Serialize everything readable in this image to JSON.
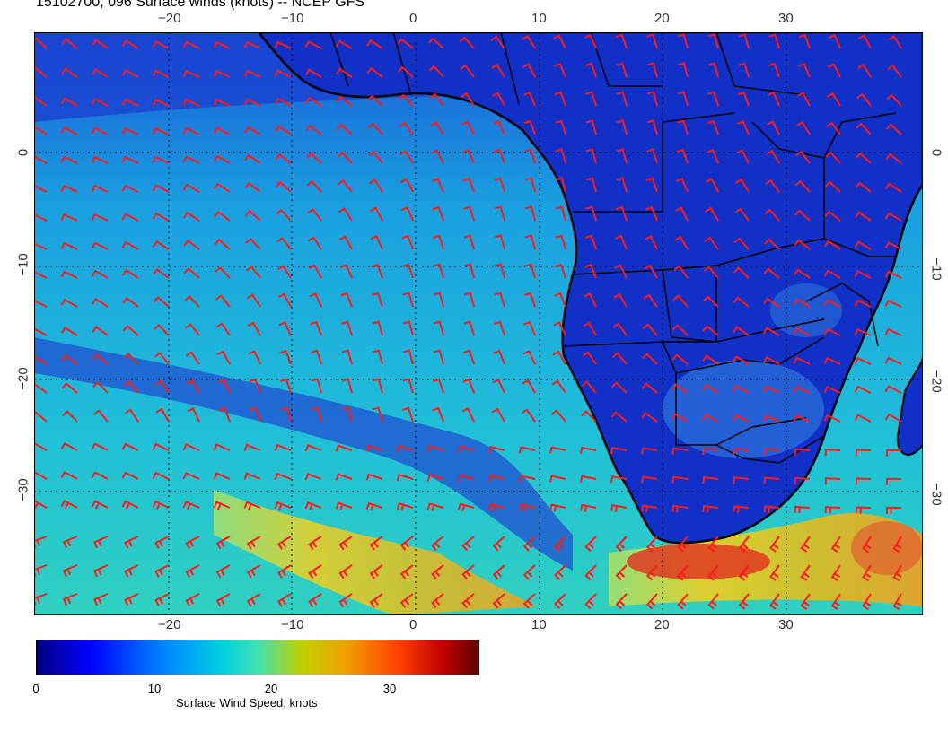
{
  "title": "15102700, 096 Surface winds (knots) -- NCEP GFS",
  "map": {
    "lon_labels": [
      "−20",
      "−10",
      "0",
      "10",
      "20",
      "30"
    ],
    "lat_labels": [
      "0",
      "−10",
      "−20",
      "−30"
    ],
    "land_color": "#1030c8",
    "ocean_color": "#1aa8e0",
    "barb_color": "#ff1a1a"
  },
  "colorbar": {
    "ticks": [
      "0",
      "10",
      "20",
      "30"
    ],
    "label": "Surface Wind Speed, knots"
  }
}
